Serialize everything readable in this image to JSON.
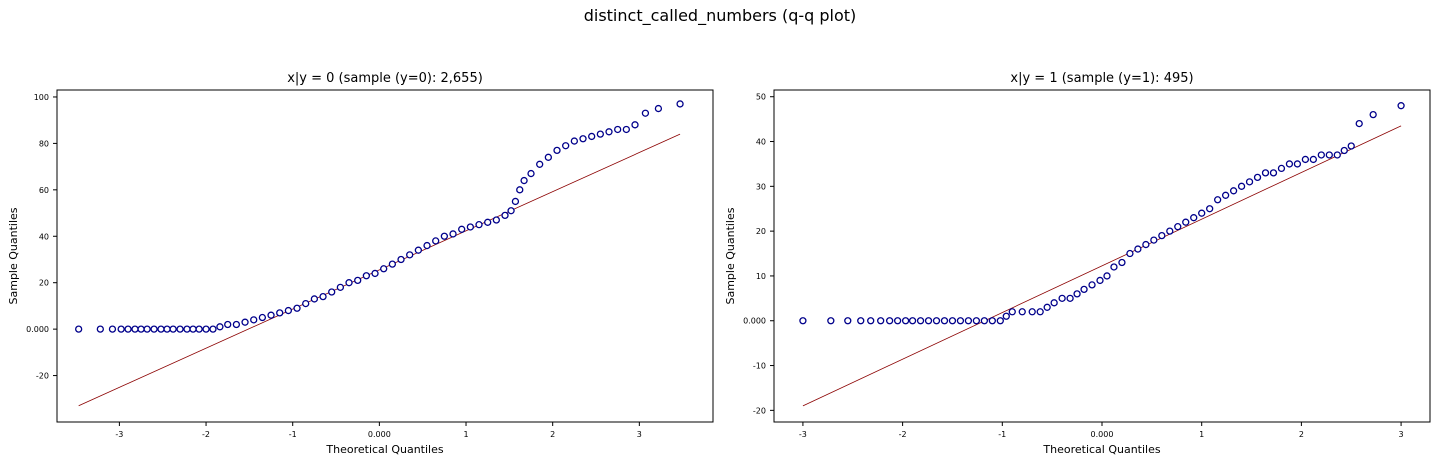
{
  "figure": {
    "suptitle": "distinct_called_numbers (q-q plot)"
  },
  "colors": {
    "marker_edge": "#00008b",
    "marker_face": "#ffffff",
    "reference_line": "#8b0000",
    "axes": "#000000"
  },
  "chart_data": [
    {
      "type": "scatter",
      "title": "x|y = 0 (sample (y=0): 2,655)",
      "xlabel": "Theoretical Quantiles",
      "ylabel": "Sample Quantiles",
      "xlim": [
        -3.72,
        3.85
      ],
      "ylim": [
        -40,
        103
      ],
      "xticks": [
        -3,
        -2,
        -1,
        0,
        1,
        2,
        3
      ],
      "xtick_labels": [
        "-3",
        "-2",
        "-1",
        "0.000",
        "1",
        "2",
        "3"
      ],
      "yticks": [
        -20,
        0,
        20,
        40,
        60,
        80,
        100
      ],
      "ytick_labels": [
        "-20",
        "0.000",
        "20",
        "40",
        "60",
        "80",
        "100"
      ],
      "reference_line": {
        "x": [
          -3.47,
          3.47
        ],
        "y": [
          -33,
          84
        ]
      },
      "series": [
        {
          "marker": "open-circle",
          "points": [
            [
              -3.47,
              0
            ],
            [
              -3.22,
              0
            ],
            [
              -3.08,
              0
            ],
            [
              -2.98,
              0
            ],
            [
              -2.9,
              0
            ],
            [
              -2.82,
              0
            ],
            [
              -2.75,
              0
            ],
            [
              -2.68,
              0
            ],
            [
              -2.6,
              0
            ],
            [
              -2.52,
              0
            ],
            [
              -2.45,
              0
            ],
            [
              -2.38,
              0
            ],
            [
              -2.3,
              0
            ],
            [
              -2.22,
              0
            ],
            [
              -2.15,
              0
            ],
            [
              -2.08,
              0
            ],
            [
              -2.0,
              0
            ],
            [
              -1.92,
              0
            ],
            [
              -1.84,
              1
            ],
            [
              -1.75,
              2
            ],
            [
              -1.65,
              2
            ],
            [
              -1.55,
              3
            ],
            [
              -1.45,
              4
            ],
            [
              -1.35,
              5
            ],
            [
              -1.25,
              6
            ],
            [
              -1.15,
              7
            ],
            [
              -1.05,
              8
            ],
            [
              -0.95,
              9
            ],
            [
              -0.85,
              11
            ],
            [
              -0.75,
              13
            ],
            [
              -0.65,
              14
            ],
            [
              -0.55,
              16
            ],
            [
              -0.45,
              18
            ],
            [
              -0.35,
              20
            ],
            [
              -0.25,
              21
            ],
            [
              -0.15,
              23
            ],
            [
              -0.05,
              24
            ],
            [
              0.05,
              26
            ],
            [
              0.15,
              28
            ],
            [
              0.25,
              30
            ],
            [
              0.35,
              32
            ],
            [
              0.45,
              34
            ],
            [
              0.55,
              36
            ],
            [
              0.65,
              38
            ],
            [
              0.75,
              40
            ],
            [
              0.85,
              41
            ],
            [
              0.95,
              43
            ],
            [
              1.05,
              44
            ],
            [
              1.15,
              45
            ],
            [
              1.25,
              46
            ],
            [
              1.35,
              47
            ],
            [
              1.45,
              49
            ],
            [
              1.52,
              51
            ],
            [
              1.57,
              55
            ],
            [
              1.62,
              60
            ],
            [
              1.67,
              64
            ],
            [
              1.75,
              67
            ],
            [
              1.85,
              71
            ],
            [
              1.95,
              74
            ],
            [
              2.05,
              77
            ],
            [
              2.15,
              79
            ],
            [
              2.25,
              81
            ],
            [
              2.35,
              82
            ],
            [
              2.45,
              83
            ],
            [
              2.55,
              84
            ],
            [
              2.65,
              85
            ],
            [
              2.75,
              86
            ],
            [
              2.85,
              86
            ],
            [
              2.95,
              88
            ],
            [
              3.07,
              93
            ],
            [
              3.22,
              95
            ],
            [
              3.47,
              97
            ]
          ]
        }
      ]
    },
    {
      "type": "scatter",
      "title": "x|y = 1 (sample (y=1): 495)",
      "xlabel": "Theoretical Quantiles",
      "ylabel": "Sample Quantiles",
      "xlim": [
        -3.29,
        3.29
      ],
      "ylim": [
        -22.6,
        51.5
      ],
      "xticks": [
        -3,
        -2,
        -1,
        0,
        1,
        2,
        3
      ],
      "xtick_labels": [
        "-3",
        "-2",
        "-1",
        "0.000",
        "1",
        "2",
        "3"
      ],
      "yticks": [
        -20,
        -10,
        0,
        10,
        20,
        30,
        40,
        50
      ],
      "ytick_labels": [
        "-20",
        "-10",
        "0.000",
        "10",
        "20",
        "30",
        "40",
        "50"
      ],
      "reference_line": {
        "x": [
          -3.0,
          3.0
        ],
        "y": [
          -19,
          43.5
        ]
      },
      "series": [
        {
          "marker": "open-circle",
          "points": [
            [
              -3.0,
              0
            ],
            [
              -2.72,
              0
            ],
            [
              -2.55,
              0
            ],
            [
              -2.42,
              0
            ],
            [
              -2.32,
              0
            ],
            [
              -2.22,
              0
            ],
            [
              -2.13,
              0
            ],
            [
              -2.05,
              0
            ],
            [
              -1.97,
              0
            ],
            [
              -1.9,
              0
            ],
            [
              -1.82,
              0
            ],
            [
              -1.74,
              0
            ],
            [
              -1.66,
              0
            ],
            [
              -1.58,
              0
            ],
            [
              -1.5,
              0
            ],
            [
              -1.42,
              0
            ],
            [
              -1.34,
              0
            ],
            [
              -1.26,
              0
            ],
            [
              -1.18,
              0
            ],
            [
              -1.1,
              0
            ],
            [
              -1.02,
              0
            ],
            [
              -0.96,
              1
            ],
            [
              -0.9,
              2
            ],
            [
              -0.8,
              2
            ],
            [
              -0.7,
              2
            ],
            [
              -0.62,
              2
            ],
            [
              -0.55,
              3
            ],
            [
              -0.48,
              4
            ],
            [
              -0.4,
              5
            ],
            [
              -0.32,
              5
            ],
            [
              -0.25,
              6
            ],
            [
              -0.18,
              7
            ],
            [
              -0.1,
              8
            ],
            [
              -0.02,
              9
            ],
            [
              0.05,
              10
            ],
            [
              0.12,
              12
            ],
            [
              0.2,
              13
            ],
            [
              0.28,
              15
            ],
            [
              0.36,
              16
            ],
            [
              0.44,
              17
            ],
            [
              0.52,
              18
            ],
            [
              0.6,
              19
            ],
            [
              0.68,
              20
            ],
            [
              0.76,
              21
            ],
            [
              0.84,
              22
            ],
            [
              0.92,
              23
            ],
            [
              1.0,
              24
            ],
            [
              1.08,
              25
            ],
            [
              1.16,
              27
            ],
            [
              1.24,
              28
            ],
            [
              1.32,
              29
            ],
            [
              1.4,
              30
            ],
            [
              1.48,
              31
            ],
            [
              1.56,
              32
            ],
            [
              1.64,
              33
            ],
            [
              1.72,
              33
            ],
            [
              1.8,
              34
            ],
            [
              1.88,
              35
            ],
            [
              1.96,
              35
            ],
            [
              2.04,
              36
            ],
            [
              2.12,
              36
            ],
            [
              2.2,
              37
            ],
            [
              2.28,
              37
            ],
            [
              2.36,
              37
            ],
            [
              2.43,
              38
            ],
            [
              2.5,
              39
            ],
            [
              2.58,
              44
            ],
            [
              2.72,
              46
            ],
            [
              3.0,
              48
            ]
          ]
        }
      ]
    }
  ]
}
